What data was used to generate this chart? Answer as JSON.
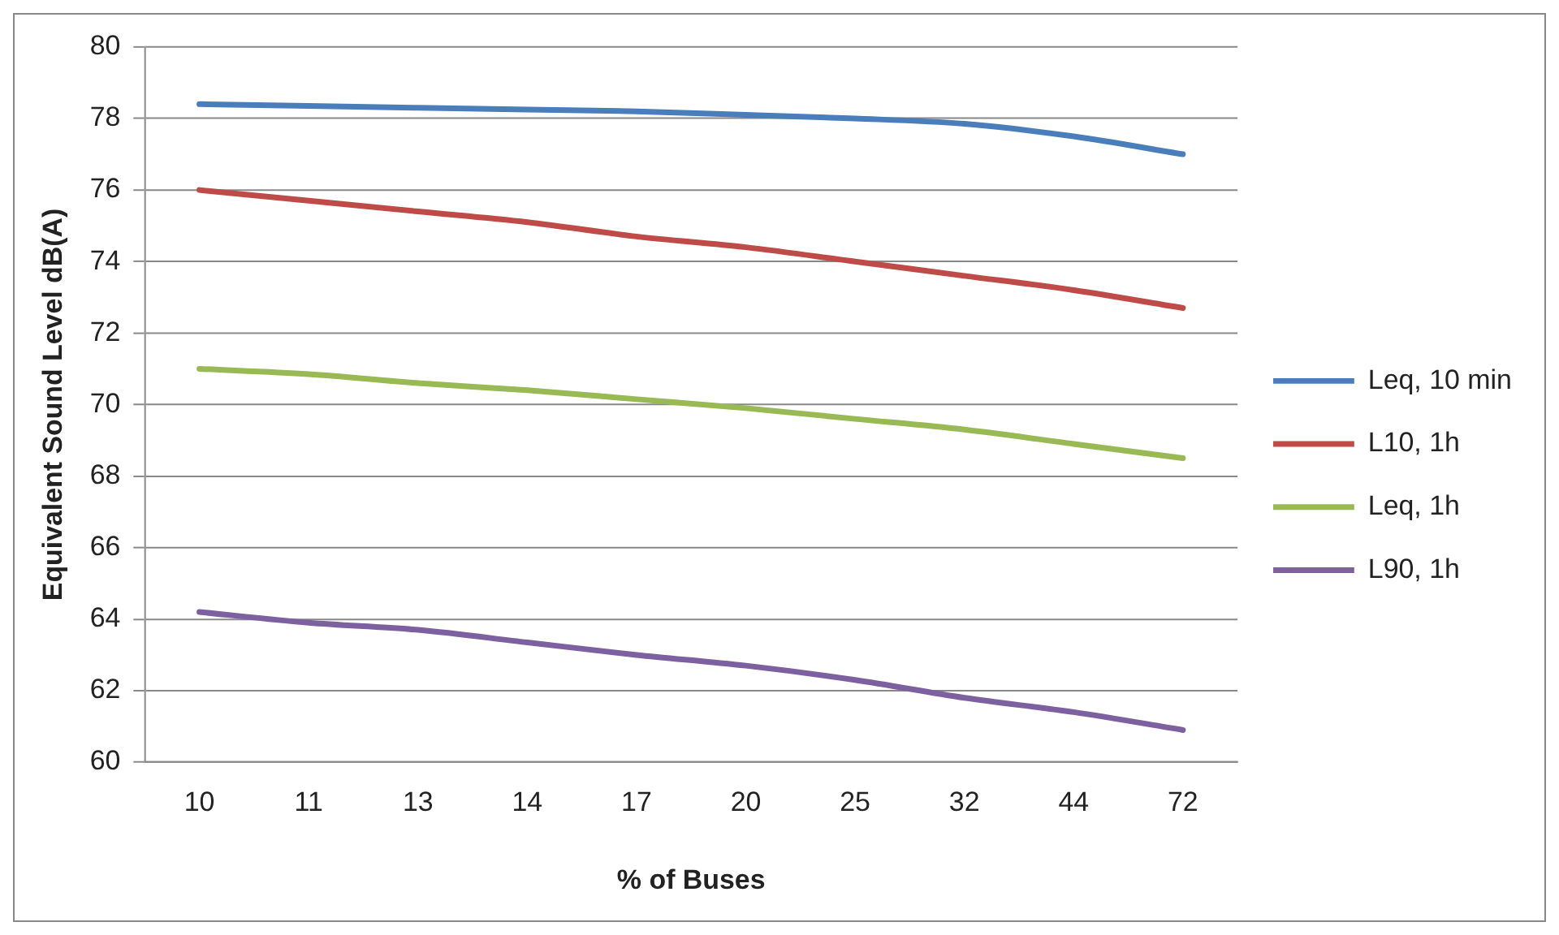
{
  "chart_data": {
    "type": "line",
    "xlabel": "% of Buses",
    "ylabel": "Equivalent Sound Level dB(A)",
    "categories": [
      "10",
      "11",
      "13",
      "14",
      "17",
      "20",
      "25",
      "32",
      "44",
      "72"
    ],
    "ylim": [
      60,
      80
    ],
    "yticks": [
      60,
      62,
      64,
      66,
      68,
      70,
      72,
      74,
      76,
      78,
      80
    ],
    "grid": "y",
    "legend": "right",
    "marker": "none",
    "series": [
      {
        "name": "Leq, 10 min",
        "color": "#4a7ebb",
        "values": [
          78.4,
          78.35,
          78.3,
          78.25,
          78.2,
          78.1,
          78.0,
          77.85,
          77.5,
          77.0
        ]
      },
      {
        "name": "L10, 1h",
        "color": "#be4b48",
        "values": [
          76.0,
          75.7,
          75.4,
          75.1,
          74.7,
          74.4,
          74.0,
          73.6,
          73.2,
          72.7
        ]
      },
      {
        "name": "Leq, 1h",
        "color": "#98b954",
        "values": [
          71.0,
          70.85,
          70.6,
          70.4,
          70.15,
          69.9,
          69.6,
          69.3,
          68.9,
          68.5
        ]
      },
      {
        "name": "L90, 1h",
        "color": "#7d60a0",
        "values": [
          64.2,
          63.9,
          63.7,
          63.35,
          63.0,
          62.7,
          62.3,
          61.8,
          61.4,
          60.9
        ]
      }
    ]
  }
}
